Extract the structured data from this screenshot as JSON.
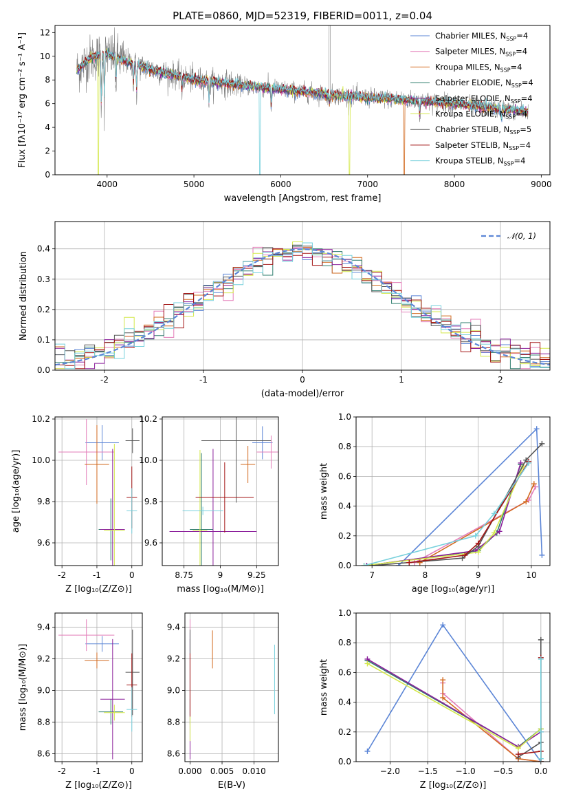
{
  "colors": {
    "Chabrier MILES": "#5b85d6",
    "Salpeter MILES": "#e37cb8",
    "Kroupa MILES": "#d2691e",
    "Chabrier ELODIE": "#2e7d6e",
    "Salpeter ELODIE": "#8b1f9b",
    "Kroupa ELODIE": "#d4e84a",
    "Chabrier STELIB": "#555555",
    "Salpeter STELIB": "#a31515",
    "Kroupa STELIB": "#76d0dc",
    "data": "#808080",
    "normal": "#5b85d6"
  },
  "chart_data": [
    {
      "id": "spectrum",
      "type": "line",
      "title": "PLATE=0860, MJD=52319, FIBERID=0011, z=0.04",
      "xlabel": "wavelength [Angstrom, rest frame]",
      "ylabel": "Flux [fλ10⁻¹⁷ erg cm⁻² s⁻¹ A⁻¹]",
      "xlim": [
        3400,
        9100
      ],
      "ylim": [
        0,
        12.6
      ],
      "xticks": [
        4000,
        5000,
        6000,
        7000,
        8000,
        9000
      ],
      "yticks": [
        0,
        2,
        4,
        6,
        8,
        10,
        12
      ],
      "legend_position": "top-right",
      "legend": [
        {
          "label": "Chabrier MILES, N",
          "sub": "SSP",
          "suffix": "=4"
        },
        {
          "label": "Salpeter MILES, N",
          "sub": "SSP",
          "suffix": "=4"
        },
        {
          "label": "Kroupa MILES, N",
          "sub": "SSP",
          "suffix": "=4"
        },
        {
          "label": "Chabrier ELODIE, N",
          "sub": "SSP",
          "suffix": "=4"
        },
        {
          "label": "Salpeter ELODIE, N",
          "sub": "SSP",
          "suffix": "=4"
        },
        {
          "label": "Kroupa ELODIE, N",
          "sub": "SSP",
          "suffix": "=4"
        },
        {
          "label": "Chabrier STELIB, N",
          "sub": "SSP",
          "suffix": "=5"
        },
        {
          "label": "Salpeter STELIB, N",
          "sub": "SSP",
          "suffix": "=4"
        },
        {
          "label": "Kroupa STELIB, N",
          "sub": "SSP",
          "suffix": "=4"
        }
      ],
      "continuum_knots": [
        [
          3650,
          8.8
        ],
        [
          3800,
          9.8
        ],
        [
          4000,
          10.2
        ],
        [
          4200,
          9.6
        ],
        [
          4500,
          8.9
        ],
        [
          5000,
          8.0
        ],
        [
          5500,
          7.6
        ],
        [
          6000,
          7.2
        ],
        [
          6500,
          6.8
        ],
        [
          7000,
          6.5
        ],
        [
          7500,
          6.3
        ],
        [
          8000,
          6.0
        ],
        [
          8500,
          5.6
        ],
        [
          8850,
          5.3
        ]
      ],
      "absorption_features": [
        [
          3934,
          5.5
        ],
        [
          3969,
          4.5
        ],
        [
          4102,
          2.5
        ],
        [
          4304,
          2.0
        ],
        [
          4340,
          2.5
        ],
        [
          4861,
          1.5
        ],
        [
          5175,
          2.0
        ],
        [
          5890,
          2.0
        ],
        [
          6563,
          1.0
        ],
        [
          7600,
          1.5
        ],
        [
          8542,
          1.0
        ]
      ],
      "model_drops": [
        {
          "model": "Kroupa MILES",
          "x": 7420
        },
        {
          "model": "Kroupa ELODIE",
          "x": 6790
        },
        {
          "model": "Kroupa STELIB",
          "x": 5760
        },
        {
          "model": "Kroupa ELODIE",
          "x": 3900
        }
      ]
    },
    {
      "id": "residuals",
      "type": "line",
      "xlabel": "(data-model)/error",
      "ylabel": "Normed distribution",
      "xlim": [
        -2.5,
        2.5
      ],
      "ylim": [
        0,
        0.49
      ],
      "xticks": [
        -2,
        -1,
        0,
        1,
        2
      ],
      "yticks": [
        0.0,
        0.1,
        0.2,
        0.3,
        0.4
      ],
      "legend": "𝒩(0, 1)",
      "legend_position": "top-right",
      "bin_width": 0.1,
      "normal": {
        "mean": 0,
        "sigma": 1
      }
    },
    {
      "id": "age_vs_Z",
      "type": "scatter",
      "xlabel": "Z [log₁₀(Z/Z⊙)]",
      "ylabel": "age  [log₁₀(age/yr)]",
      "xlim": [
        -2.2,
        0.3
      ],
      "ylim": [
        9.49,
        10.21
      ],
      "xticks": [
        -2,
        -1,
        0
      ],
      "yticks": [
        9.6,
        9.8,
        10.0,
        10.2
      ],
      "points": [
        {
          "model": "Chabrier MILES",
          "x": -0.85,
          "xerr": 0.48,
          "y": 10.085,
          "yerr": 0.085
        },
        {
          "model": "Salpeter MILES",
          "x": -1.3,
          "xerr": 0.8,
          "y": 10.04,
          "yerr": 0.16
        },
        {
          "model": "Kroupa MILES",
          "x": -1.0,
          "xerr": 0.35,
          "y": 9.98,
          "yerr": 0.19
        },
        {
          "model": "Chabrier ELODIE",
          "x": -0.6,
          "xerr": 0.35,
          "y": 9.665,
          "yerr": 0.15
        },
        {
          "model": "Salpeter ELODIE",
          "x": -0.55,
          "xerr": 0.35,
          "y": 9.665,
          "yerr": 0.39
        },
        {
          "model": "Kroupa ELODIE",
          "x": -0.5,
          "xerr": 0.3,
          "y": 9.66,
          "yerr": 0.42
        },
        {
          "model": "Chabrier STELIB",
          "x": 0.02,
          "xerr": 0.2,
          "y": 10.095,
          "yerr": 0.06
        },
        {
          "model": "Salpeter STELIB",
          "x": 0.0,
          "xerr": 0.15,
          "y": 9.82,
          "yerr": 0.15
        },
        {
          "model": "Kroupa STELIB",
          "x": 0.0,
          "xerr": 0.15,
          "y": 9.755,
          "yerr": 0.11
        }
      ]
    },
    {
      "id": "age_vs_mass",
      "type": "scatter",
      "xlabel": "mass [log₁₀(M/M⊙)]",
      "ylabel": "",
      "xlim": [
        8.6,
        9.4
      ],
      "ylim": [
        9.49,
        10.21
      ],
      "xticks": [
        8.75,
        9.0,
        9.25
      ],
      "yticks": [
        9.6,
        9.8,
        10.0,
        10.2
      ],
      "points": [
        {
          "model": "Chabrier MILES",
          "x": 9.29,
          "xerr": 0.07,
          "y": 10.085,
          "yerr": 0.08
        },
        {
          "model": "Salpeter MILES",
          "x": 9.35,
          "xerr": 0.1,
          "y": 10.04,
          "yerr": 0.08
        },
        {
          "model": "Kroupa MILES",
          "x": 9.19,
          "xerr": 0.05,
          "y": 9.98,
          "yerr": 0.09
        },
        {
          "model": "Chabrier ELODIE",
          "x": 8.87,
          "xerr": 0.08,
          "y": 9.665,
          "yerr": 0.37
        },
        {
          "model": "Salpeter ELODIE",
          "x": 8.95,
          "xerr": 0.3,
          "y": 9.655,
          "yerr": 0.4
        },
        {
          "model": "Kroupa ELODIE",
          "x": 8.86,
          "xerr": 0.05,
          "y": 9.66,
          "yerr": 0.39
        },
        {
          "model": "Chabrier STELIB",
          "x": 9.11,
          "xerr": 0.24,
          "y": 10.095,
          "yerr": 0.3
        },
        {
          "model": "Salpeter STELIB",
          "x": 9.03,
          "xerr": 0.2,
          "y": 9.82,
          "yerr": 0.17
        },
        {
          "model": "Kroupa STELIB",
          "x": 8.88,
          "xerr": 0.14,
          "y": 9.755,
          "yerr": 0.02
        }
      ]
    },
    {
      "id": "mass_weight_vs_age",
      "type": "line",
      "xlabel": "age  [log₁₀(age/yr)]",
      "ylabel": "mass weight",
      "xlim": [
        6.7,
        10.35
      ],
      "ylim": [
        0,
        1.0
      ],
      "xticks": [
        7,
        8,
        9,
        10
      ],
      "yticks": [
        0.0,
        0.2,
        0.4,
        0.6,
        0.8,
        1.0
      ],
      "series": [
        {
          "model": "Chabrier MILES",
          "x": [
            7.5,
            10.1,
            10.2
          ],
          "y": [
            0.0,
            0.92,
            0.07
          ]
        },
        {
          "model": "Salpeter MILES",
          "x": [
            7.8,
            9.95,
            10.08
          ],
          "y": [
            0.02,
            0.44,
            0.53
          ]
        },
        {
          "model": "Kroupa MILES",
          "x": [
            7.9,
            9.9,
            10.05
          ],
          "y": [
            0.02,
            0.43,
            0.55
          ]
        },
        {
          "model": "Chabrier ELODIE",
          "x": [
            6.9,
            9.0,
            9.35,
            9.8
          ],
          "y": [
            0.0,
            0.1,
            0.22,
            0.68
          ]
        },
        {
          "model": "Salpeter ELODIE",
          "x": [
            6.9,
            8.95,
            9.4,
            9.8
          ],
          "y": [
            0.0,
            0.1,
            0.23,
            0.69
          ]
        },
        {
          "model": "Kroupa ELODIE",
          "x": [
            6.85,
            9.0,
            9.3,
            9.85
          ],
          "y": [
            0.0,
            0.09,
            0.22,
            0.67
          ]
        },
        {
          "model": "Chabrier STELIB",
          "x": [
            7.0,
            8.7,
            9.0,
            9.9,
            10.2
          ],
          "y": [
            0.0,
            0.05,
            0.13,
            0.71,
            0.82
          ]
        },
        {
          "model": "Salpeter STELIB",
          "x": [
            7.7,
            8.75,
            9.0,
            9.95
          ],
          "y": [
            0.02,
            0.07,
            0.15,
            0.7
          ]
        },
        {
          "model": "Kroupa STELIB",
          "x": [
            6.85,
            8.95,
            9.3,
            9.95
          ],
          "y": [
            0.0,
            0.2,
            0.35,
            0.69
          ]
        }
      ]
    },
    {
      "id": "mass_vs_Z",
      "type": "scatter",
      "xlabel": "Z [log₁₀(Z/Z⊙)]",
      "ylabel": "mass [log₁₀(M/M⊙)]",
      "xlim": [
        -2.2,
        0.3
      ],
      "ylim": [
        8.55,
        9.49
      ],
      "xticks": [
        -2,
        -1,
        0
      ],
      "yticks": [
        8.6,
        8.8,
        9.0,
        9.2,
        9.4
      ],
      "points": [
        {
          "model": "Chabrier MILES",
          "x": -0.85,
          "xerr": 0.48,
          "y": 9.295,
          "yerr": 0.05
        },
        {
          "model": "Salpeter MILES",
          "x": -1.3,
          "xerr": 0.8,
          "y": 9.35,
          "yerr": 0.1
        },
        {
          "model": "Kroupa MILES",
          "x": -1.0,
          "xerr": 0.35,
          "y": 9.19,
          "yerr": 0.05
        },
        {
          "model": "Chabrier ELODIE",
          "x": -0.6,
          "xerr": 0.35,
          "y": 8.865,
          "yerr": 0.08
        },
        {
          "model": "Salpeter ELODIE",
          "x": -0.55,
          "xerr": 0.35,
          "y": 8.945,
          "yerr": 0.38
        },
        {
          "model": "Kroupa ELODIE",
          "x": -0.5,
          "xerr": 0.3,
          "y": 8.86,
          "yerr": 0.05
        },
        {
          "model": "Chabrier STELIB",
          "x": 0.02,
          "xerr": 0.2,
          "y": 9.115,
          "yerr": 0.27
        },
        {
          "model": "Salpeter STELIB",
          "x": 0.0,
          "xerr": 0.15,
          "y": 9.035,
          "yerr": 0.2
        },
        {
          "model": "Kroupa STELIB",
          "x": 0.0,
          "xerr": 0.15,
          "y": 8.88,
          "yerr": 0.14
        }
      ]
    },
    {
      "id": "mass_vs_ebv",
      "type": "scatter",
      "xlabel": "E(B-V)",
      "ylabel": "",
      "xlim": [
        -0.0008,
        0.0138
      ],
      "ylim": [
        8.55,
        9.49
      ],
      "xticks": [
        0.0,
        0.005,
        0.01
      ],
      "xticklabels": [
        "0.000",
        "0.005",
        "0.010"
      ],
      "yticks": [
        8.6,
        8.8,
        9.0,
        9.2,
        9.4
      ],
      "points": [
        {
          "model": "Chabrier MILES",
          "x": 0.0,
          "xerr": 0,
          "y": 9.295,
          "yerr": 0.07
        },
        {
          "model": "Salpeter MILES",
          "x": 0.0,
          "xerr": 0,
          "y": 9.35,
          "yerr": 0.1
        },
        {
          "model": "Kroupa MILES",
          "x": 0.0035,
          "xerr": 0,
          "y": 9.26,
          "yerr": 0.12
        },
        {
          "model": "Chabrier ELODIE",
          "x": 0.0,
          "xerr": 0,
          "y": 8.865,
          "yerr": 0.08
        },
        {
          "model": "Salpeter ELODIE",
          "x": 0.0,
          "xerr": 0,
          "y": 8.945,
          "yerr": 0.38
        },
        {
          "model": "Kroupa ELODIE",
          "x": 0.0,
          "xerr": 0,
          "y": 8.76,
          "yerr": 0.08
        },
        {
          "model": "Chabrier STELIB",
          "x": 0.0,
          "xerr": 0,
          "y": 9.115,
          "yerr": 0.27
        },
        {
          "model": "Salpeter STELIB",
          "x": 0.0,
          "xerr": 0,
          "y": 9.035,
          "yerr": 0.2
        },
        {
          "model": "Kroupa STELIB",
          "x": 0.0132,
          "xerr": 0,
          "y": 9.07,
          "yerr": 0.22
        }
      ]
    },
    {
      "id": "mass_weight_vs_Z",
      "type": "line",
      "xlabel": "Z [log₁₀(Z/Z⊙)]",
      "ylabel": "mass weight",
      "xlim": [
        -2.45,
        0.12
      ],
      "ylim": [
        0,
        1.0
      ],
      "xticks": [
        -2.0,
        -1.5,
        -1.0,
        -0.5,
        0.0
      ],
      "xticklabels": [
        "−2.0",
        "−1.5",
        "−1.0",
        "−0.5",
        "0.0"
      ],
      "yticks": [
        0.0,
        0.2,
        0.4,
        0.6,
        0.8,
        1.0
      ],
      "series": [
        {
          "model": "Chabrier MILES",
          "x": [
            -2.3,
            -1.3,
            0.0
          ],
          "y": [
            0.07,
            0.92,
            0.0
          ]
        },
        {
          "model": "Salpeter MILES",
          "x": [
            -1.3,
            -1.3,
            -0.3,
            0.0
          ],
          "y": [
            0.53,
            0.46,
            0.02,
            0.0
          ]
        },
        {
          "model": "Kroupa MILES",
          "x": [
            -1.3,
            -1.3,
            -0.3,
            0.0
          ],
          "y": [
            0.55,
            0.43,
            0.02,
            0.0
          ]
        },
        {
          "model": "Chabrier ELODIE",
          "x": [
            -2.3,
            -0.3,
            0.0,
            0.0
          ],
          "y": [
            0.68,
            0.1,
            0.22,
            0.0
          ]
        },
        {
          "model": "Salpeter ELODIE",
          "x": [
            -2.3,
            -0.3,
            0.0,
            0.0
          ],
          "y": [
            0.69,
            0.1,
            0.2,
            0.0
          ]
        },
        {
          "model": "Kroupa ELODIE",
          "x": [
            -2.3,
            -0.3,
            0.0,
            0.0
          ],
          "y": [
            0.66,
            0.09,
            0.22,
            0.0
          ]
        },
        {
          "model": "Chabrier STELIB",
          "x": [
            -0.3,
            0.0,
            0.0,
            0.0
          ],
          "y": [
            0.03,
            0.13,
            0.82,
            0.0
          ]
        },
        {
          "model": "Salpeter STELIB",
          "x": [
            -0.3,
            0.0,
            0.0,
            0.0
          ],
          "y": [
            0.05,
            0.07,
            0.7,
            0.0
          ]
        },
        {
          "model": "Kroupa STELIB",
          "x": [
            0.0,
            0.0,
            0.0
          ],
          "y": [
            0.69,
            0.2,
            0.02
          ]
        }
      ]
    }
  ]
}
